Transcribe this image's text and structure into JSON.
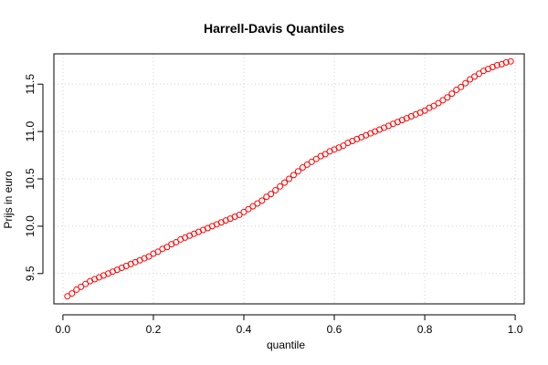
{
  "chart_data": {
    "type": "scatter",
    "title": "Harrell-Davis Quantiles",
    "xlabel": "quantile",
    "ylabel": "Prijs in euro",
    "xlim": [
      -0.02,
      1.02
    ],
    "ylim": [
      9.18,
      11.82
    ],
    "xticks": [
      0.0,
      0.2,
      0.4,
      0.6,
      0.8,
      1.0
    ],
    "xtick_labels": [
      "0.0",
      "0.2",
      "0.4",
      "0.6",
      "0.8",
      "1.0"
    ],
    "yticks": [
      9.5,
      10.0,
      10.5,
      11.0,
      11.5
    ],
    "ytick_labels": [
      "9.5",
      "10.0",
      "10.5",
      "11.0",
      "11.5"
    ],
    "grid": true,
    "point_color": "#ff0000",
    "series": [
      {
        "x": [
          0.01,
          0.02,
          0.03,
          0.04,
          0.05,
          0.06,
          0.07,
          0.08,
          0.09,
          0.1,
          0.11,
          0.12,
          0.13,
          0.14,
          0.15,
          0.16,
          0.17,
          0.18,
          0.19,
          0.2,
          0.21,
          0.22,
          0.23,
          0.24,
          0.25,
          0.26,
          0.27,
          0.28,
          0.29,
          0.3,
          0.31,
          0.32,
          0.33,
          0.34,
          0.35,
          0.36,
          0.37,
          0.38,
          0.39,
          0.4,
          0.41,
          0.42,
          0.43,
          0.44,
          0.45,
          0.46,
          0.47,
          0.48,
          0.49,
          0.5,
          0.51,
          0.52,
          0.53,
          0.54,
          0.55,
          0.56,
          0.57,
          0.58,
          0.59,
          0.6,
          0.61,
          0.62,
          0.63,
          0.64,
          0.65,
          0.66,
          0.67,
          0.68,
          0.69,
          0.7,
          0.71,
          0.72,
          0.73,
          0.74,
          0.75,
          0.76,
          0.77,
          0.78,
          0.79,
          0.8,
          0.81,
          0.82,
          0.83,
          0.84,
          0.85,
          0.86,
          0.87,
          0.88,
          0.89,
          0.9,
          0.91,
          0.92,
          0.93,
          0.94,
          0.95,
          0.96,
          0.97,
          0.98,
          0.99
        ],
        "y": [
          9.26,
          9.29,
          9.33,
          9.36,
          9.39,
          9.42,
          9.44,
          9.46,
          9.48,
          9.5,
          9.52,
          9.54,
          9.56,
          9.58,
          9.6,
          9.62,
          9.64,
          9.66,
          9.68,
          9.71,
          9.73,
          9.76,
          9.78,
          9.81,
          9.83,
          9.86,
          9.88,
          9.9,
          9.92,
          9.94,
          9.96,
          9.98,
          10.0,
          10.02,
          10.04,
          10.06,
          10.08,
          10.1,
          10.12,
          10.15,
          10.18,
          10.21,
          10.24,
          10.27,
          10.31,
          10.34,
          10.38,
          10.42,
          10.46,
          10.5,
          10.54,
          10.58,
          10.62,
          10.65,
          10.68,
          10.71,
          10.74,
          10.76,
          10.79,
          10.81,
          10.83,
          10.85,
          10.88,
          10.9,
          10.92,
          10.94,
          10.96,
          10.98,
          11.0,
          11.02,
          11.04,
          11.06,
          11.08,
          11.1,
          11.12,
          11.14,
          11.16,
          11.18,
          11.2,
          11.22,
          11.25,
          11.27,
          11.3,
          11.33,
          11.36,
          11.4,
          11.44,
          11.47,
          11.51,
          11.55,
          11.58,
          11.61,
          11.64,
          11.66,
          11.68,
          11.7,
          11.71,
          11.73,
          11.74
        ]
      }
    ]
  }
}
